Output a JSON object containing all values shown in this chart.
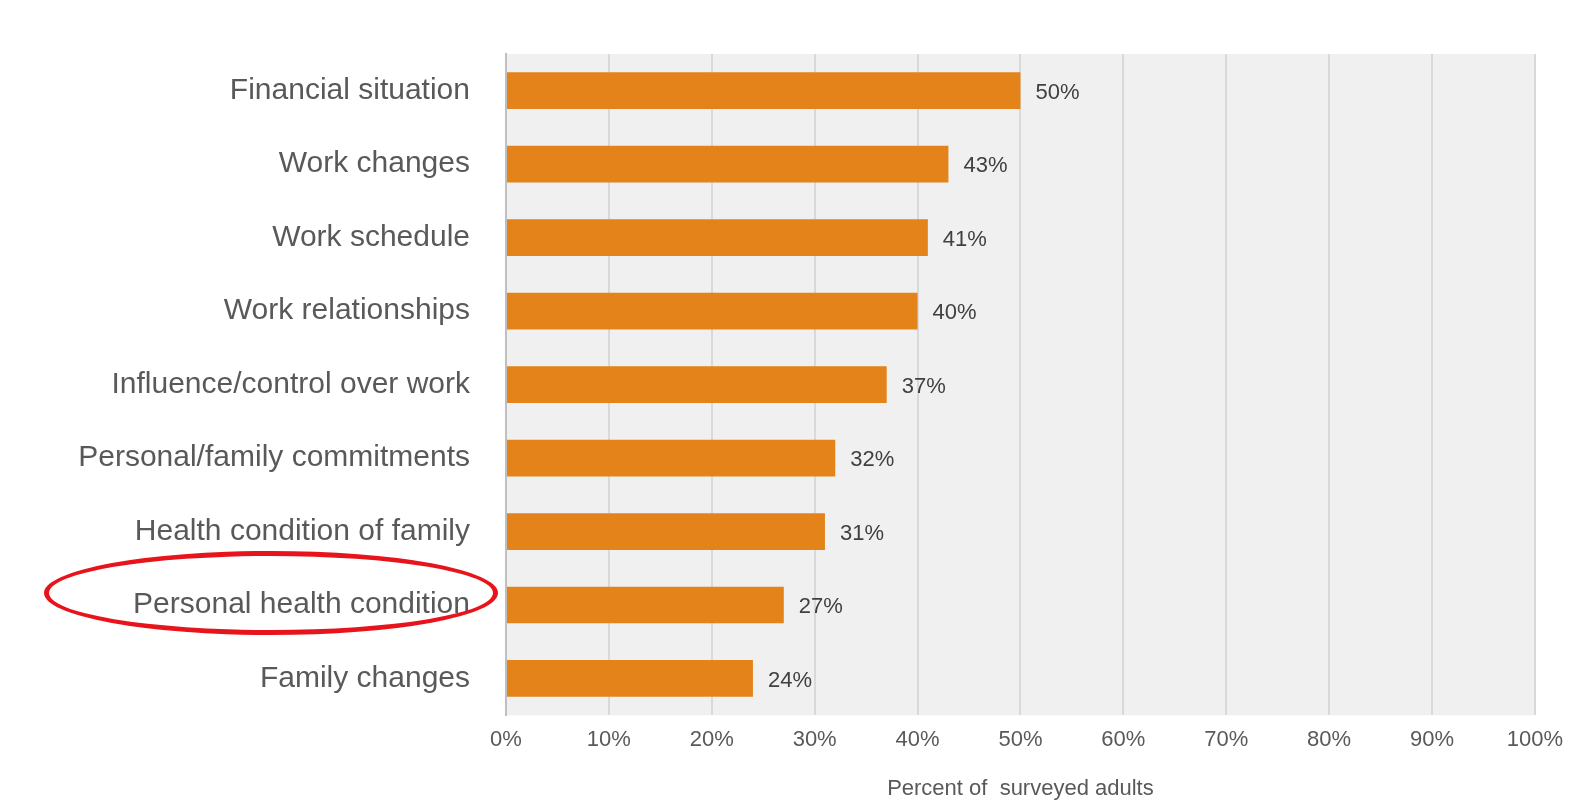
{
  "chart_data": {
    "type": "bar",
    "orientation": "horizontal",
    "categories": [
      "Financial situation",
      "Work changes",
      "Work schedule",
      "Work relationships",
      "Influence/control over work",
      "Personal/family commitments",
      "Health condition of family",
      "Personal health condition",
      "Family changes"
    ],
    "values": [
      50,
      43,
      41,
      40,
      37,
      32,
      31,
      27,
      24
    ],
    "value_labels": [
      "50%",
      "43%",
      "41%",
      "40%",
      "37%",
      "32%",
      "31%",
      "27%",
      "24%"
    ],
    "color": "#e3831a",
    "xlabel": "Percent of  surveyed adults",
    "xlim": [
      0,
      100
    ],
    "xticks": [
      {
        "value": 0,
        "label": "0%"
      },
      {
        "value": 10,
        "label": "10%"
      },
      {
        "value": 20,
        "label": "20%"
      },
      {
        "value": 30,
        "label": "30%"
      },
      {
        "value": 40,
        "label": "40%"
      },
      {
        "value": 50,
        "label": "50%"
      },
      {
        "value": 60,
        "label": "60%"
      },
      {
        "value": 70,
        "label": "70%"
      },
      {
        "value": 80,
        "label": "80%"
      },
      {
        "value": 90,
        "label": "90%"
      },
      {
        "value": 100,
        "label": "100%"
      }
    ],
    "grid": "x"
  }
}
